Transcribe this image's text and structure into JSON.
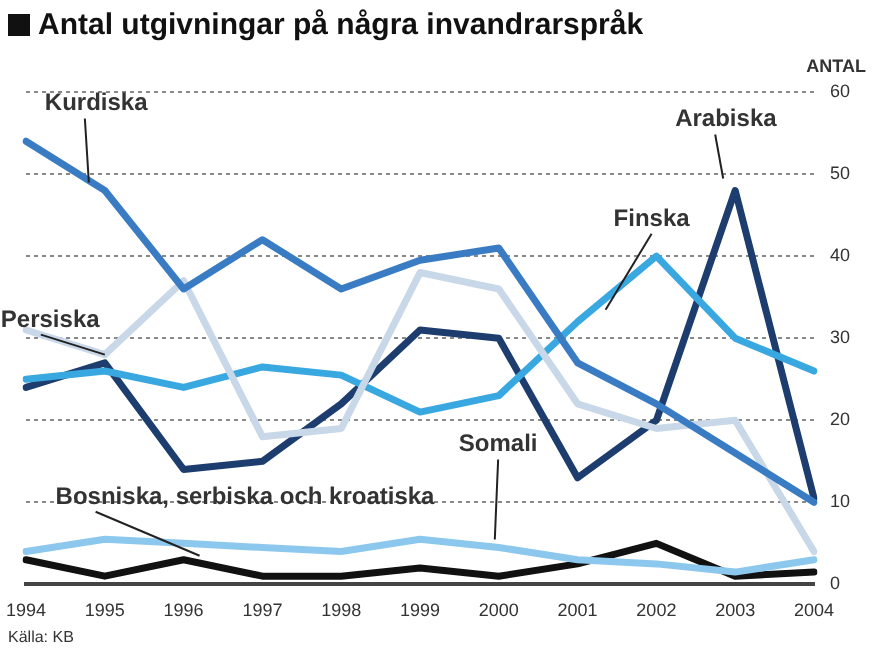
{
  "chart_data": {
    "type": "line",
    "title": "Antal utgivningar på några invandrarspråk",
    "ylabel": "ANTAL",
    "annotations": [
      "Källa: KB"
    ],
    "categories": [
      "1994",
      "1995",
      "1996",
      "1997",
      "1998",
      "1999",
      "2000",
      "2001",
      "2002",
      "2003",
      "2004"
    ],
    "series": [
      {
        "name": "Kurdiska",
        "color": "#3a7cc4",
        "values": [
          54,
          48,
          36,
          42,
          36,
          39.5,
          41,
          27,
          22,
          16,
          10
        ]
      },
      {
        "name": "Persiska",
        "color": "#c8d8e8",
        "values": [
          31,
          28,
          37,
          18,
          19,
          38,
          36,
          22,
          19,
          20,
          4
        ]
      },
      {
        "name": "Finska",
        "color": "#3aa8e0",
        "values": [
          25,
          26,
          24,
          26.5,
          25.5,
          21,
          23,
          32,
          40,
          30,
          26
        ]
      },
      {
        "name": "Arabiska",
        "color": "#1c3d6e",
        "values": [
          24,
          27,
          14,
          15,
          22,
          31,
          30,
          13,
          20,
          48,
          10.5
        ]
      },
      {
        "name": "Somali",
        "color": "#8cc8ee",
        "values": [
          4,
          5.5,
          5,
          4.5,
          4,
          5.5,
          4.5,
          3,
          2.5,
          1.5,
          3
        ]
      },
      {
        "name": "Bosniska, serbiska och kroatiska",
        "color": "#111111",
        "values": [
          3,
          1,
          3,
          1,
          1,
          2,
          1,
          2.5,
          5,
          1,
          1.5
        ]
      }
    ],
    "ylim": [
      0,
      60
    ],
    "yticks": [
      0,
      10,
      20,
      30,
      40,
      50,
      60
    ],
    "grid": "y",
    "legend": false,
    "marker": "none",
    "line_style": "solid"
  }
}
